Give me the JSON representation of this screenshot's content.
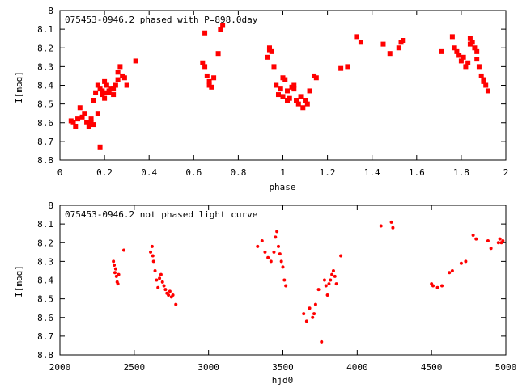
{
  "colors": {
    "marker": "#ff0000",
    "axis": "#000000",
    "background": "#ffffff"
  },
  "chart_data": [
    {
      "type": "scatter",
      "title": "075453-0946.2 phased with P=898.0day",
      "xlabel": "phase",
      "ylabel": "I[mag]",
      "xlim": [
        0,
        2
      ],
      "ylim": [
        8.8,
        8
      ],
      "y_inverted": true,
      "grid": false,
      "marker": "filled-square",
      "x_ticks": [
        "0",
        "0.2",
        "0.4",
        "0.6",
        "0.8",
        "1",
        "1.2",
        "1.4",
        "1.6",
        "1.8",
        "2"
      ],
      "y_ticks": [
        "8",
        "8.1",
        "8.2",
        "8.3",
        "8.4",
        "8.5",
        "8.6",
        "8.7",
        "8.8"
      ],
      "series": [
        {
          "x": [
            0.05,
            0.06,
            0.07,
            0.08,
            0.09,
            0.1,
            0.11,
            0.12,
            0.13,
            0.14,
            0.15,
            0.16,
            0.17,
            0.18,
            0.19,
            0.2,
            0.21,
            0.22,
            0.23,
            0.24,
            0.25,
            0.26,
            0.27,
            0.28,
            0.29,
            0.3,
            0.34,
            0.18,
            0.2,
            0.24,
            0.26,
            0.19,
            0.17,
            0.14,
            0.15,
            0.2,
            0.22,
            0.64,
            0.65,
            0.66,
            0.67,
            0.68,
            0.69,
            0.71,
            0.72,
            0.73,
            0.65,
            0.67,
            0.93,
            0.94,
            0.95,
            0.96,
            0.97,
            0.98,
            0.99,
            1.0,
            1.01,
            1.02,
            1.03,
            1.04,
            1.05,
            1.06,
            1.07,
            1.08,
            1.09,
            1.1,
            1.11,
            1.12,
            1.14,
            1.15,
            0.94,
            1.0,
            1.02,
            1.05,
            1.26,
            1.29,
            1.33,
            1.35,
            1.45,
            1.48,
            1.52,
            1.53,
            1.54,
            1.71,
            1.76,
            1.77,
            1.78,
            1.79,
            1.8,
            1.81,
            1.82,
            1.83,
            1.84,
            1.85,
            1.86,
            1.87,
            1.88,
            1.89,
            1.9,
            1.91,
            1.92,
            1.84,
            1.87,
            1.9
          ],
          "y": [
            8.59,
            8.6,
            8.62,
            8.58,
            8.52,
            8.57,
            8.55,
            8.6,
            8.62,
            8.6,
            8.48,
            8.44,
            8.4,
            8.42,
            8.45,
            8.44,
            8.4,
            8.43,
            8.42,
            8.45,
            8.4,
            8.33,
            8.3,
            8.35,
            8.36,
            8.4,
            8.27,
            8.73,
            8.38,
            8.42,
            8.37,
            8.43,
            8.55,
            8.58,
            8.61,
            8.47,
            8.44,
            8.28,
            8.3,
            8.35,
            8.38,
            8.41,
            8.36,
            8.23,
            8.1,
            8.08,
            8.12,
            8.4,
            8.25,
            8.21,
            8.22,
            8.3,
            8.4,
            8.45,
            8.42,
            8.36,
            8.37,
            8.43,
            8.47,
            8.41,
            8.4,
            8.48,
            8.5,
            8.46,
            8.52,
            8.48,
            8.5,
            8.43,
            8.35,
            8.36,
            8.2,
            8.46,
            8.48,
            8.42,
            8.31,
            8.3,
            8.14,
            8.17,
            8.18,
            8.23,
            8.2,
            8.17,
            8.16,
            8.22,
            8.14,
            8.2,
            8.22,
            8.24,
            8.27,
            8.25,
            8.3,
            8.28,
            8.15,
            8.17,
            8.2,
            8.22,
            8.3,
            8.35,
            8.37,
            8.4,
            8.43,
            8.18,
            8.26,
            8.38
          ]
        }
      ]
    },
    {
      "type": "scatter",
      "title": "075453-0946.2 not phased light curve",
      "xlabel": "hjd0",
      "ylabel": "I[mag]",
      "xlim": [
        2000,
        5000
      ],
      "ylim": [
        8.8,
        8
      ],
      "y_inverted": true,
      "grid": false,
      "marker": "small-dot",
      "x_ticks": [
        "2000",
        "2500",
        "3000",
        "3500",
        "4000",
        "4500",
        "5000"
      ],
      "y_ticks": [
        "8",
        "8.1",
        "8.2",
        "8.3",
        "8.4",
        "8.5",
        "8.6",
        "8.7",
        "8.8"
      ],
      "series": [
        {
          "x": [
            2360,
            2365,
            2370,
            2375,
            2380,
            2385,
            2390,
            2395,
            2430,
            2610,
            2620,
            2625,
            2630,
            2640,
            2650,
            2660,
            2670,
            2680,
            2690,
            2700,
            2710,
            2720,
            2730,
            2740,
            2750,
            2760,
            2780,
            3330,
            3360,
            3380,
            3400,
            3420,
            3440,
            3450,
            3460,
            3470,
            3480,
            3490,
            3500,
            3510,
            3520,
            3640,
            3660,
            3680,
            3700,
            3710,
            3720,
            3740,
            3760,
            3780,
            3790,
            3800,
            3810,
            3820,
            3830,
            3840,
            3850,
            3860,
            3890,
            4160,
            4230,
            4240,
            4500,
            4510,
            4540,
            4570,
            4620,
            4640,
            4700,
            4730,
            4780,
            4800,
            4880,
            4900,
            4950,
            4960,
            4970,
            4980
          ],
          "y": [
            8.3,
            8.32,
            8.36,
            8.34,
            8.38,
            8.41,
            8.42,
            8.37,
            8.24,
            8.25,
            8.22,
            8.27,
            8.3,
            8.35,
            8.4,
            8.44,
            8.39,
            8.37,
            8.41,
            8.43,
            8.45,
            8.47,
            8.48,
            8.46,
            8.49,
            8.48,
            8.53,
            8.22,
            8.19,
            8.25,
            8.28,
            8.3,
            8.25,
            8.17,
            8.14,
            8.22,
            8.26,
            8.3,
            8.33,
            8.4,
            8.43,
            8.58,
            8.62,
            8.55,
            8.6,
            8.58,
            8.53,
            8.45,
            8.73,
            8.4,
            8.43,
            8.48,
            8.42,
            8.4,
            8.37,
            8.35,
            8.38,
            8.42,
            8.27,
            8.11,
            8.09,
            8.12,
            8.42,
            8.43,
            8.44,
            8.43,
            8.36,
            8.35,
            8.31,
            8.3,
            8.16,
            8.18,
            8.19,
            8.23,
            8.2,
            8.18,
            8.2,
            8.19
          ]
        }
      ]
    }
  ]
}
